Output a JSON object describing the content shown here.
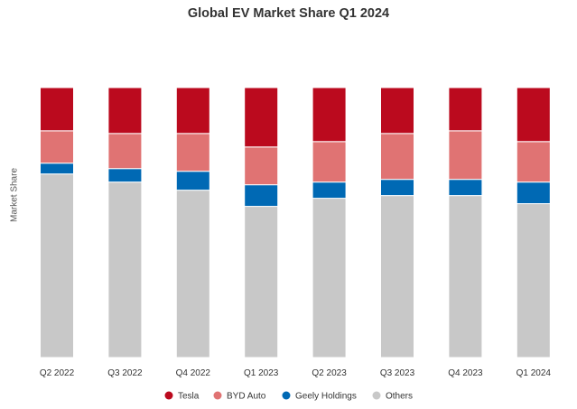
{
  "chart_data": {
    "type": "bar",
    "stacked": true,
    "normalized": true,
    "title": "Global EV Market Share Q1 2024",
    "xlabel": "",
    "ylabel": "Market Share",
    "ylim": [
      0,
      100
    ],
    "grid": false,
    "legend_position": "bottom",
    "categories": [
      "Q2 2022",
      "Q3 2022",
      "Q4 2022",
      "Q1 2023",
      "Q2 2023",
      "Q3 2023",
      "Q4 2023",
      "Q1 2024"
    ],
    "series": [
      {
        "name": "Others",
        "color": "#c8c8c8",
        "values": [
          68.0,
          65.0,
          62.0,
          56.0,
          59.0,
          60.0,
          60.0,
          57.0
        ]
      },
      {
        "name": "Geely Holdings",
        "color": "#0069b4",
        "values": [
          4.0,
          5.0,
          7.0,
          8.0,
          6.0,
          6.0,
          6.0,
          8.0
        ]
      },
      {
        "name": "BYD Auto",
        "color": "#e07373",
        "values": [
          12.0,
          13.0,
          14.0,
          14.0,
          15.0,
          17.0,
          18.0,
          15.0
        ]
      },
      {
        "name": "Tesla",
        "color": "#bb0a1e",
        "values": [
          16.0,
          17.0,
          17.0,
          22.0,
          20.0,
          17.0,
          16.0,
          20.0
        ]
      }
    ],
    "legend_order": [
      "Tesla",
      "BYD Auto",
      "Geely Holdings",
      "Others"
    ]
  }
}
